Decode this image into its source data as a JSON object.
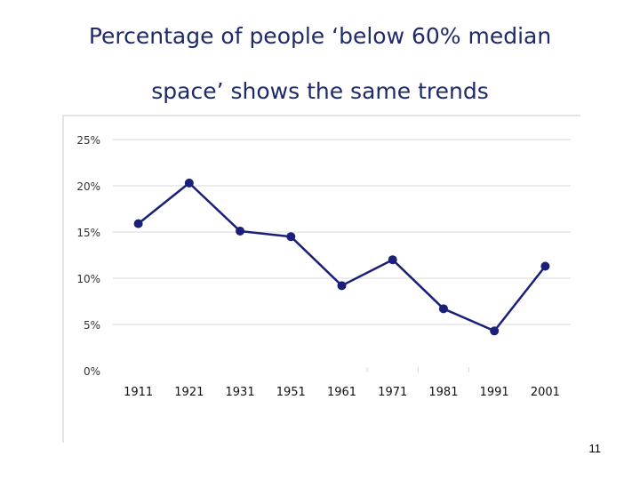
{
  "slide": {
    "title_line1": "Percentage of people ‘below 60% median",
    "title_line2": "space’ shows the same trends",
    "page_number": "11"
  },
  "colors": {
    "series": "#1a1f7a",
    "title": "#1f2a6b",
    "grid": "#d9d9d9",
    "axis": "#8c8c8c",
    "tick_label": "#333333"
  },
  "chart_data": {
    "type": "line",
    "title": "",
    "xlabel": "",
    "ylabel": "",
    "categories": [
      "1911",
      "1921",
      "1931",
      "1951",
      "1961",
      "1971",
      "1981",
      "1991",
      "2001"
    ],
    "y_tick_labels": [
      "0%",
      "5%",
      "10%",
      "15%",
      "20%",
      "25%"
    ],
    "ylim": [
      0,
      25
    ],
    "grid": true,
    "legend": "none",
    "series": [
      {
        "values": [
          15.9,
          20.3,
          15.1,
          14.5,
          9.2,
          12.0,
          6.7,
          4.3,
          11.3
        ]
      }
    ]
  }
}
